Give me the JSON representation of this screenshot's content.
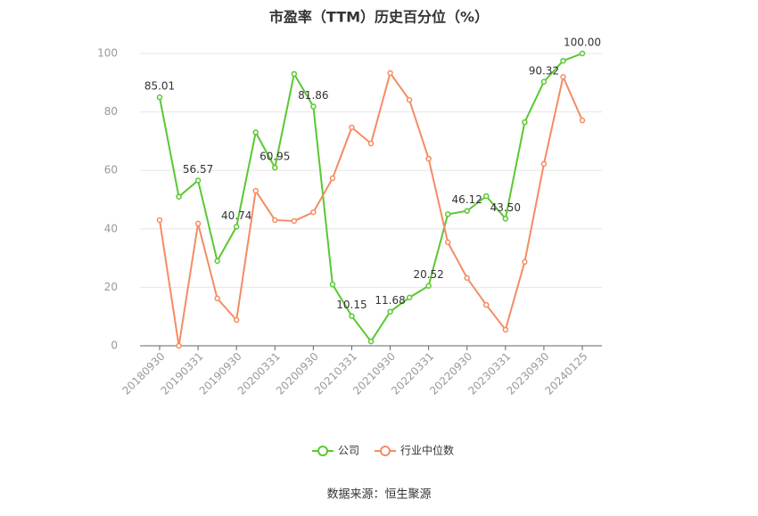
{
  "chart_data": {
    "type": "line",
    "title": "市盈率（TTM）历史百分位（%）",
    "categories": [
      "20180930",
      null,
      "20190331",
      null,
      "20190930",
      null,
      "20200331",
      null,
      "20200930",
      null,
      "20210331",
      null,
      "20210930",
      null,
      "20220331",
      null,
      "20220930",
      null,
      "20230331",
      null,
      "20230930",
      null,
      "20240125"
    ],
    "series": [
      {
        "name": "公司",
        "color": "#5ac832",
        "values": [
          85.01,
          51,
          56.57,
          29,
          40.74,
          73,
          60.95,
          93,
          81.86,
          21,
          10.15,
          1.5,
          11.68,
          16.5,
          20.52,
          45,
          46.12,
          51.2,
          43.5,
          76.5,
          90.32,
          97.5,
          100.0
        ],
        "value_labels": [
          "85.01",
          null,
          "56.57",
          null,
          "40.74",
          null,
          "60.95",
          null,
          "81.86",
          null,
          "10.15",
          null,
          "11.68",
          null,
          "20.52",
          null,
          "46.12",
          null,
          "43.50",
          null,
          "90.32",
          null,
          "100.00"
        ]
      },
      {
        "name": "行业中位数",
        "color": "#f48c63",
        "values": [
          43,
          0,
          41.8,
          16.2,
          8.8,
          53,
          43,
          42.7,
          45.7,
          57.3,
          74.7,
          69.2,
          93.3,
          84.1,
          64,
          35.4,
          23.2,
          14,
          5.5,
          28.7,
          62.2,
          92,
          77.1
        ]
      }
    ],
    "ylim": [
      0,
      100
    ],
    "yticks": [
      0,
      20,
      40,
      60,
      80,
      100
    ],
    "grid": true,
    "source": "数据来源：恒生聚源"
  }
}
